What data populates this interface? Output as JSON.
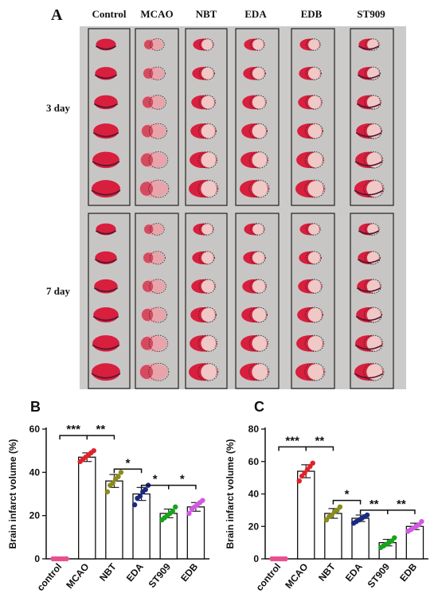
{
  "figure": {
    "panel_a": {
      "letter": "A",
      "groups": [
        "Control",
        "MCAO",
        "NBT",
        "EDA",
        "EDB",
        "ST909"
      ],
      "rows": [
        "3 day",
        "7 day"
      ]
    }
  },
  "chart_data": [
    {
      "panel": "B",
      "type": "bar",
      "ylabel": "Brain infarct volume (%)",
      "xlabel": "",
      "ylim": [
        0,
        60
      ],
      "yticks": [
        0,
        20,
        40,
        60
      ],
      "categories": [
        "control",
        "MCAO",
        "NBT",
        "EDA",
        "ST909",
        "EDB"
      ],
      "values": [
        0,
        47,
        36,
        30,
        21,
        24
      ],
      "errors": [
        0,
        2,
        3,
        3,
        2,
        2
      ],
      "points": [
        [
          0,
          0,
          0,
          0,
          0,
          0
        ],
        [
          45,
          46,
          47,
          48,
          49,
          50
        ],
        [
          31,
          34,
          35,
          37,
          38,
          40
        ],
        [
          25,
          28,
          29,
          31,
          32,
          34
        ],
        [
          18,
          19,
          20,
          21,
          22,
          24
        ],
        [
          21,
          23,
          24,
          25,
          26,
          27
        ]
      ],
      "point_colors": [
        "#e8508f",
        "#e0222a",
        "#8a8a1e",
        "#1b2a80",
        "#19a319",
        "#d05ae0"
      ],
      "significance": [
        {
          "from": 0,
          "to": 1,
          "label": "***"
        },
        {
          "from": 1,
          "to": 2,
          "label": "**"
        },
        {
          "from": 2,
          "to": 3,
          "label": "*"
        },
        {
          "from": 3,
          "to": 4,
          "label": "*"
        },
        {
          "from": 4,
          "to": 5,
          "label": "*"
        }
      ],
      "sig_heights": [
        57,
        57,
        41.5,
        34,
        34
      ]
    },
    {
      "panel": "C",
      "type": "bar",
      "ylabel": "Brain infarct volume (%)",
      "xlabel": "",
      "ylim": [
        0,
        80
      ],
      "yticks": [
        0,
        20,
        40,
        60,
        80
      ],
      "categories": [
        "control",
        "MCAO",
        "NBT",
        "EDA",
        "ST909",
        "EDB"
      ],
      "values": [
        0,
        54,
        28,
        25,
        10,
        20
      ],
      "errors": [
        0,
        4,
        3,
        2,
        2,
        2
      ],
      "points": [
        [
          0,
          0,
          0,
          0,
          0,
          0
        ],
        [
          48,
          51,
          53,
          55,
          57,
          59
        ],
        [
          24,
          26,
          27,
          29,
          30,
          32
        ],
        [
          22,
          23,
          24,
          25,
          26,
          27
        ],
        [
          7,
          8,
          9,
          10,
          11,
          13
        ],
        [
          17,
          18,
          19,
          20,
          21,
          23
        ]
      ],
      "point_colors": [
        "#e8508f",
        "#e0222a",
        "#8a8a1e",
        "#1b2a80",
        "#19a319",
        "#d05ae0"
      ],
      "significance": [
        {
          "from": 0,
          "to": 1,
          "label": "***"
        },
        {
          "from": 1,
          "to": 2,
          "label": "**"
        },
        {
          "from": 2,
          "to": 3,
          "label": "*"
        },
        {
          "from": 3,
          "to": 4,
          "label": "**"
        },
        {
          "from": 4,
          "to": 5,
          "label": "**"
        }
      ],
      "sig_heights": [
        69,
        69,
        36,
        30,
        30
      ]
    }
  ]
}
